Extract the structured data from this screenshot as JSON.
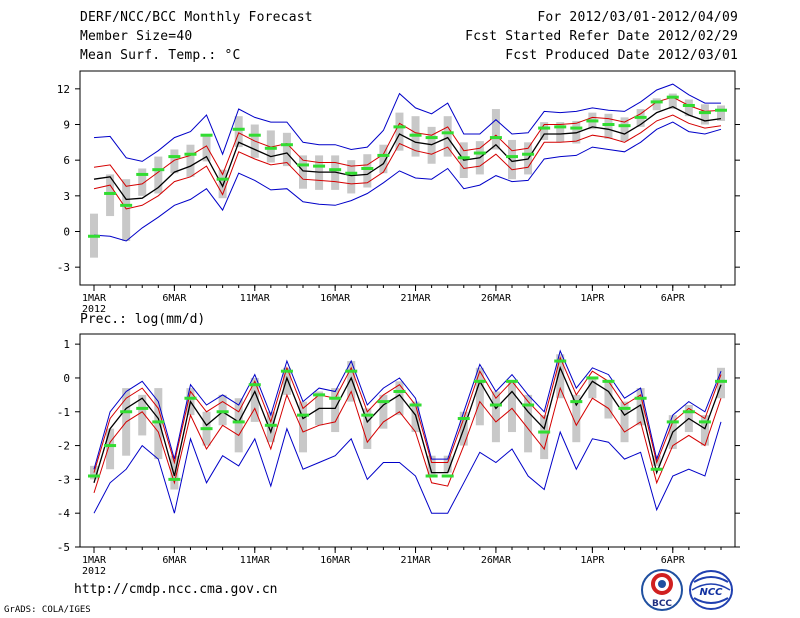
{
  "header": {
    "title": "DERF/NCC/BCC Monthly Forecast",
    "member_size": "Member Size=40",
    "variable1": "Mean Surf. Temp.: °C",
    "period": "For 2012/03/01-2012/04/09",
    "refer_date": "Fcst Started Refer Date 2012/02/29",
    "produced_date": "Fcst Produced Date 2012/03/01"
  },
  "footer": {
    "url": "http://cmdp.ncc.cma.gov.cn",
    "grads": "GrADS: COLA/IGES",
    "logo_bcc": "BCC",
    "logo_ncc": "NCC"
  },
  "colors": {
    "box": "#c8c8c8",
    "ensemble_mean": "#000000",
    "spread": "#d40000",
    "extremes": "#0000c8",
    "median": "#32dc32"
  },
  "chart_data": [
    {
      "type": "line",
      "name": "temperature",
      "ylabel": "Mean Surf. Temp.: °C",
      "ylim": [
        -4.5,
        13.5
      ],
      "yticks": [
        -3,
        0,
        3,
        6,
        9,
        12
      ],
      "xtick_labels": [
        {
          "day": 1,
          "label": "1MAR"
        },
        {
          "day": 6,
          "label": "6MAR"
        },
        {
          "day": 11,
          "label": "11MAR"
        },
        {
          "day": 16,
          "label": "16MAR"
        },
        {
          "day": 21,
          "label": "21MAR"
        },
        {
          "day": 26,
          "label": "26MAR"
        },
        {
          "day": 32,
          "label": "1APR"
        },
        {
          "day": 37,
          "label": "6APR"
        }
      ],
      "year_label": "2012",
      "days": 40,
      "mean": [
        4.4,
        4.6,
        2.7,
        2.8,
        3.7,
        5.0,
        5.5,
        6.3,
        3.8,
        7.5,
        6.9,
        6.3,
        6.6,
        5.1,
        5.0,
        5.0,
        4.7,
        4.8,
        5.7,
        8.2,
        7.5,
        7.3,
        7.9,
        6.0,
        6.2,
        7.3,
        5.9,
        6.1,
        8.2,
        8.2,
        8.3,
        8.8,
        8.6,
        8.2,
        9.0,
        10.0,
        10.5,
        9.8,
        9.3,
        9.5
      ],
      "upper": [
        5.4,
        5.6,
        3.8,
        4.0,
        5.0,
        6.0,
        6.4,
        7.2,
        4.8,
        8.3,
        7.6,
        7.1,
        7.4,
        6.0,
        5.8,
        5.8,
        5.5,
        5.6,
        6.5,
        9.1,
        8.3,
        8.1,
        8.8,
        6.8,
        7.0,
        8.1,
        6.8,
        7.0,
        9.0,
        9.0,
        9.1,
        9.6,
        9.5,
        9.2,
        9.9,
        10.9,
        11.3,
        10.6,
        10.1,
        10.2
      ],
      "lower": [
        3.6,
        3.9,
        1.9,
        2.2,
        3.0,
        4.2,
        4.6,
        5.5,
        3.1,
        6.7,
        6.1,
        5.6,
        5.8,
        4.4,
        4.3,
        4.2,
        4.0,
        4.1,
        5.0,
        7.4,
        6.8,
        6.5,
        7.1,
        5.3,
        5.5,
        6.5,
        5.2,
        5.4,
        7.5,
        7.5,
        7.6,
        8.1,
        7.9,
        7.5,
        8.3,
        9.3,
        9.8,
        9.1,
        8.7,
        8.9
      ],
      "max": [
        7.9,
        8.0,
        6.2,
        5.9,
        6.8,
        7.9,
        8.4,
        9.8,
        6.5,
        10.3,
        9.6,
        9.2,
        9.2,
        7.5,
        7.3,
        7.3,
        6.9,
        7.1,
        8.5,
        11.6,
        10.4,
        9.9,
        10.8,
        8.2,
        8.2,
        9.4,
        8.2,
        8.3,
        10.1,
        10.0,
        10.1,
        10.4,
        10.2,
        10.1,
        10.9,
        11.9,
        12.4,
        11.5,
        10.8,
        10.8
      ],
      "min": [
        -0.3,
        -0.4,
        -0.8,
        0.3,
        1.2,
        2.2,
        2.7,
        3.6,
        1.8,
        4.9,
        4.3,
        3.5,
        3.6,
        2.5,
        2.3,
        2.2,
        2.6,
        3.2,
        4.1,
        5.1,
        4.5,
        4.4,
        5.3,
        3.6,
        3.9,
        4.7,
        4.2,
        4.3,
        6.1,
        6.3,
        6.4,
        7.1,
        6.9,
        6.7,
        7.5,
        8.6,
        9.2,
        8.4,
        8.2,
        8.6
      ],
      "box_top": [
        1.5,
        4.8,
        4.4,
        5.3,
        6.3,
        6.9,
        7.3,
        8.2,
        5.2,
        9.7,
        9.0,
        8.5,
        8.3,
        6.4,
        6.4,
        6.4,
        6.0,
        6.5,
        7.3,
        10.0,
        9.7,
        8.8,
        9.7,
        7.5,
        7.6,
        10.3,
        7.7,
        7.5,
        9.2,
        9.2,
        9.3,
        10.0,
        9.9,
        9.6,
        10.3,
        11.2,
        11.6,
        11.1,
        10.7,
        10.6
      ],
      "box_bot": [
        -2.2,
        1.3,
        -0.8,
        3.0,
        3.2,
        4.9,
        4.6,
        5.9,
        2.8,
        7.1,
        6.2,
        5.8,
        5.5,
        3.6,
        3.5,
        3.5,
        3.2,
        3.7,
        4.9,
        6.8,
        6.3,
        5.7,
        6.3,
        4.5,
        4.8,
        6.9,
        4.4,
        4.8,
        7.7,
        7.5,
        7.4,
        8.6,
        7.8,
        7.6,
        8.8,
        10.2,
        10.3,
        9.7,
        9.0,
        9.3
      ],
      "median": [
        -0.4,
        3.2,
        2.2,
        4.8,
        5.2,
        6.3,
        6.5,
        8.1,
        4.4,
        8.6,
        8.1,
        7.0,
        7.3,
        5.6,
        5.5,
        5.2,
        4.9,
        5.3,
        6.4,
        8.8,
        8.1,
        7.9,
        8.3,
        6.2,
        6.6,
        7.9,
        6.3,
        6.5,
        8.7,
        8.8,
        8.7,
        9.3,
        9.0,
        8.9,
        9.6,
        10.9,
        11.3,
        10.6,
        10.0,
        10.2
      ]
    },
    {
      "type": "line",
      "name": "precipitation",
      "ylabel": "Prec.: log(mm/d)",
      "ylim": [
        -5,
        1.3
      ],
      "yticks": [
        -5,
        -4,
        -3,
        -2,
        -1,
        0,
        1
      ],
      "xtick_labels": [
        {
          "day": 1,
          "label": "1MAR"
        },
        {
          "day": 6,
          "label": "6MAR"
        },
        {
          "day": 11,
          "label": "11MAR"
        },
        {
          "day": 16,
          "label": "16MAR"
        },
        {
          "day": 21,
          "label": "21MAR"
        },
        {
          "day": 26,
          "label": "26MAR"
        },
        {
          "day": 32,
          "label": "1APR"
        },
        {
          "day": 37,
          "label": "6APR"
        }
      ],
      "year_label": "2012",
      "days": 40,
      "mean": [
        -3.1,
        -1.5,
        -0.9,
        -0.6,
        -1.2,
        -2.9,
        -0.7,
        -1.4,
        -1.0,
        -1.3,
        -0.4,
        -1.6,
        0.0,
        -1.2,
        -0.9,
        -0.9,
        0.0,
        -1.3,
        -0.8,
        -0.5,
        -1.1,
        -2.8,
        -2.8,
        -1.5,
        -0.1,
        -0.9,
        -0.4,
        -1.0,
        -1.5,
        0.3,
        -0.8,
        -0.1,
        -0.4,
        -1.1,
        -0.8,
        -2.8,
        -1.6,
        -1.2,
        -1.5,
        -0.2
      ],
      "upper": [
        -2.8,
        -1.2,
        -0.6,
        -0.3,
        -0.9,
        -2.5,
        -0.4,
        -1.0,
        -0.7,
        -1.0,
        -0.1,
        -1.3,
        0.3,
        -0.9,
        -0.5,
        -0.6,
        0.3,
        -1.0,
        -0.5,
        -0.2,
        -0.8,
        -2.5,
        -2.5,
        -1.2,
        0.2,
        -0.6,
        -0.1,
        -0.7,
        -1.2,
        0.6,
        -0.5,
        0.2,
        -0.1,
        -0.8,
        -0.5,
        -2.5,
        -1.3,
        -0.9,
        -1.2,
        0.1
      ],
      "lower": [
        -3.4,
        -1.9,
        -1.3,
        -1.0,
        -1.6,
        -3.1,
        -1.1,
        -2.1,
        -1.4,
        -1.7,
        -0.9,
        -2.1,
        -0.5,
        -1.6,
        -1.4,
        -1.3,
        -0.4,
        -1.9,
        -1.3,
        -1.0,
        -1.6,
        -3.1,
        -3.2,
        -2.0,
        -0.7,
        -1.3,
        -0.9,
        -1.5,
        -2.1,
        -0.3,
        -1.4,
        -0.6,
        -0.9,
        -1.6,
        -1.3,
        -3.1,
        -2.0,
        -1.7,
        -2.0,
        -0.6
      ],
      "max": [
        -2.7,
        -1.0,
        -0.4,
        -0.1,
        -0.7,
        -2.4,
        -0.2,
        -0.8,
        -0.5,
        -0.8,
        0.1,
        -1.1,
        0.5,
        -0.7,
        -0.3,
        -0.4,
        0.5,
        -0.8,
        -0.3,
        0.0,
        -0.6,
        -2.4,
        -2.4,
        -1.0,
        0.4,
        -0.4,
        0.1,
        -0.5,
        -1.0,
        0.8,
        -0.3,
        0.3,
        0.1,
        -0.6,
        -0.3,
        -2.4,
        -1.1,
        -0.7,
        -1.0,
        0.2
      ],
      "min": [
        -4.0,
        -3.1,
        -2.7,
        -2.0,
        -2.4,
        -4.0,
        -1.8,
        -3.1,
        -2.3,
        -2.6,
        -1.8,
        -3.2,
        -1.5,
        -2.7,
        -2.5,
        -2.3,
        -1.8,
        -3.0,
        -2.5,
        -2.5,
        -2.9,
        -4.0,
        -4.0,
        -3.1,
        -2.2,
        -2.5,
        -2.1,
        -2.9,
        -3.3,
        -1.6,
        -2.7,
        -1.8,
        -1.9,
        -2.4,
        -2.2,
        -3.9,
        -2.9,
        -2.7,
        -2.9,
        -1.3
      ],
      "box_top": [
        -2.6,
        -1.5,
        -0.3,
        -0.5,
        -0.3,
        -2.3,
        -0.3,
        -1.0,
        -0.5,
        -0.6,
        0.0,
        -1.0,
        0.3,
        -0.7,
        -0.4,
        -0.3,
        0.5,
        -0.9,
        -0.5,
        -0.1,
        -0.7,
        -2.3,
        -2.3,
        -1.0,
        0.3,
        -0.4,
        -0.1,
        -0.5,
        -1.1,
        0.7,
        -0.5,
        0.0,
        -0.1,
        -0.7,
        -0.3,
        -2.3,
        -1.1,
        -0.8,
        -1.1,
        0.3
      ],
      "box_bot": [
        -3.0,
        -2.7,
        -2.3,
        -1.7,
        -2.4,
        -3.3,
        -1.1,
        -2.0,
        -1.4,
        -2.2,
        -1.3,
        -1.9,
        -0.5,
        -2.2,
        -1.4,
        -1.6,
        -0.7,
        -2.1,
        -1.5,
        -1.1,
        -1.6,
        -2.9,
        -2.8,
        -2.0,
        -1.4,
        -1.9,
        -1.6,
        -2.2,
        -2.4,
        -0.6,
        -1.9,
        -0.6,
        -1.2,
        -1.9,
        -1.4,
        -2.6,
        -2.1,
        -1.6,
        -2.0,
        -0.6
      ],
      "median": [
        -2.9,
        -2.0,
        -1.0,
        -0.9,
        -1.3,
        -3.0,
        -0.6,
        -1.5,
        -1.0,
        -1.3,
        -0.2,
        -1.4,
        0.2,
        -1.1,
        -0.5,
        -0.6,
        0.2,
        -1.1,
        -0.7,
        -0.4,
        -0.8,
        -2.9,
        -2.9,
        -1.2,
        -0.1,
        -0.8,
        -0.1,
        -0.8,
        -1.6,
        0.5,
        -0.7,
        0.0,
        -0.1,
        -0.9,
        -0.6,
        -2.7,
        -1.3,
        -1.0,
        -1.3,
        -0.1
      ]
    }
  ]
}
